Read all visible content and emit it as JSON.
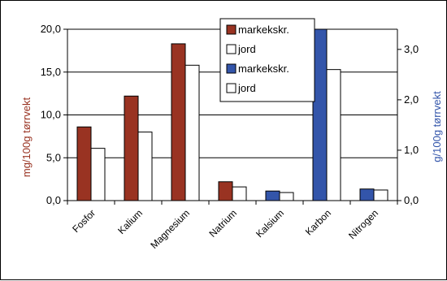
{
  "chart_data": {
    "type": "bar",
    "categories": [
      "Fosfor",
      "Kalium",
      "Magnesium",
      "Natrium",
      "Kalsium",
      "Karbon",
      "Nitrogen"
    ],
    "y_left": {
      "label": "mg/100g tørrvekt",
      "min": 0,
      "max": 20,
      "ticks": [
        "0,0",
        "5,0",
        "10,0",
        "15,0",
        "20,0"
      ]
    },
    "y_right": {
      "label": "g/100g tørrvekt",
      "min": 0,
      "max": 3.4,
      "ticks": [
        "0,0",
        "1,0",
        "2,0",
        "3,0"
      ]
    },
    "grid": true,
    "legend_position": "top-center",
    "series": [
      {
        "name": "markekskr.",
        "axis": "left",
        "color": "#993322",
        "values": [
          8.6,
          12.2,
          18.3,
          2.2,
          null,
          null,
          null
        ]
      },
      {
        "name": "jord",
        "axis": "left",
        "color": "#ffffff",
        "values": [
          6.1,
          8.0,
          15.8,
          1.6,
          null,
          null,
          null
        ]
      },
      {
        "name": "markekskr.",
        "axis": "right",
        "color": "#3355aa",
        "values": [
          null,
          null,
          null,
          null,
          0.19,
          3.4,
          0.23
        ]
      },
      {
        "name": "jord",
        "axis": "right",
        "color": "#ffffff",
        "values": [
          null,
          null,
          null,
          null,
          0.16,
          2.6,
          0.21
        ]
      }
    ]
  },
  "colors": {
    "left_label": "#993322",
    "right_label": "#3355aa"
  }
}
